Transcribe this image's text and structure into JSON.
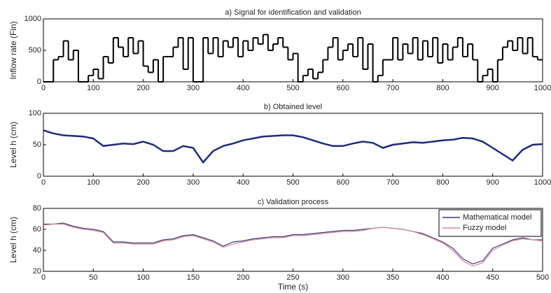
{
  "chart_data": [
    {
      "type": "step",
      "title": "a) Signal for identification and validation",
      "y_label": "Inflow rate (Fin)",
      "color": "#000000",
      "x": [
        0,
        10,
        20,
        30,
        40,
        50,
        60,
        70,
        80,
        90,
        100,
        110,
        120,
        130,
        140,
        150,
        160,
        170,
        180,
        190,
        200,
        210,
        220,
        230,
        240,
        250,
        260,
        270,
        280,
        290,
        300,
        310,
        320,
        330,
        340,
        350,
        360,
        370,
        380,
        390,
        400,
        410,
        420,
        430,
        440,
        450,
        460,
        470,
        480,
        490,
        500,
        510,
        520,
        530,
        540,
        550,
        560,
        570,
        580,
        590,
        600,
        610,
        620,
        630,
        640,
        650,
        660,
        670,
        680,
        690,
        700,
        710,
        720,
        730,
        740,
        750,
        760,
        770,
        780,
        790,
        800,
        810,
        820,
        830,
        840,
        850,
        860,
        870,
        880,
        890,
        900,
        910,
        920,
        930,
        940,
        950,
        960,
        970,
        980,
        990
      ],
      "values": [
        0,
        0,
        350,
        400,
        650,
        350,
        500,
        0,
        0,
        100,
        200,
        50,
        400,
        300,
        700,
        550,
        400,
        700,
        450,
        650,
        250,
        150,
        350,
        0,
        400,
        400,
        550,
        700,
        200,
        700,
        0,
        0,
        700,
        450,
        700,
        400,
        650,
        550,
        700,
        400,
        650,
        500,
        700,
        600,
        750,
        500,
        600,
        700,
        550,
        350,
        450,
        0,
        100,
        200,
        50,
        150,
        350,
        550,
        700,
        350,
        500,
        600,
        400,
        700,
        200,
        600,
        0,
        100,
        350,
        350,
        700,
        350,
        600,
        450,
        700,
        350,
        650,
        400,
        700,
        300,
        600,
        350,
        550,
        700,
        400,
        600,
        350,
        0,
        100,
        200,
        0,
        350,
        550,
        650,
        500,
        700,
        450,
        700,
        400,
        350
      ],
      "xlim": [
        0,
        1000
      ],
      "xticks": [
        0,
        100,
        200,
        300,
        400,
        500,
        600,
        700,
        800,
        900,
        1000
      ],
      "ylim": [
        0,
        1000
      ],
      "yticks": [
        0,
        500,
        1000
      ]
    },
    {
      "type": "line",
      "title": "b) Obtained level",
      "y_label": "Level h (cm)",
      "color": "#1f2a7a",
      "x": [
        0,
        20,
        40,
        60,
        80,
        100,
        120,
        140,
        160,
        180,
        200,
        220,
        240,
        260,
        280,
        300,
        320,
        340,
        360,
        380,
        400,
        420,
        440,
        460,
        480,
        500,
        520,
        540,
        560,
        580,
        600,
        620,
        640,
        660,
        680,
        700,
        720,
        740,
        760,
        780,
        800,
        820,
        840,
        860,
        880,
        900,
        920,
        940,
        960,
        980,
        1000
      ],
      "values": [
        73,
        68,
        65,
        64,
        63,
        60,
        48,
        50,
        52,
        51,
        55,
        50,
        40,
        40,
        48,
        45,
        22,
        40,
        48,
        52,
        57,
        60,
        63,
        64,
        65,
        65,
        62,
        57,
        52,
        48,
        48,
        52,
        55,
        53,
        45,
        50,
        52,
        54,
        53,
        55,
        57,
        58,
        61,
        60,
        55,
        45,
        35,
        25,
        42,
        50,
        51
      ],
      "xlim": [
        0,
        1000
      ],
      "xticks": [
        0,
        100,
        200,
        300,
        400,
        500,
        600,
        700,
        800,
        900,
        1000
      ],
      "ylim": [
        0,
        100
      ],
      "yticks": [
        0,
        50,
        100
      ]
    },
    {
      "type": "line",
      "title": "c) Validation process",
      "y_label": "Level h (cm)",
      "x_label": "Time (s)",
      "legend": "upper right",
      "x": [
        0,
        10,
        20,
        30,
        40,
        50,
        60,
        70,
        80,
        90,
        100,
        110,
        120,
        130,
        140,
        150,
        160,
        170,
        180,
        190,
        200,
        210,
        220,
        230,
        240,
        250,
        260,
        270,
        280,
        290,
        300,
        310,
        320,
        330,
        340,
        350,
        360,
        370,
        380,
        390,
        400,
        410,
        420,
        430,
        440,
        450,
        460,
        470,
        480,
        490,
        500
      ],
      "series": [
        {
          "name": "Mathematical model",
          "color": "#3c3c6e",
          "values": [
            65,
            65,
            66,
            63,
            61,
            60,
            58,
            48,
            48,
            47,
            47,
            47,
            50,
            51,
            54,
            55,
            52,
            49,
            44,
            48,
            49,
            51,
            52,
            53,
            53,
            55,
            55,
            56,
            57,
            58,
            59,
            59,
            60,
            61,
            62,
            61,
            60,
            58,
            56,
            52,
            48,
            42,
            32,
            27,
            30,
            42,
            46,
            50,
            52,
            50,
            50
          ]
        },
        {
          "name": "Fuzzy model",
          "color": "#d58aa3",
          "values": [
            64,
            65,
            65,
            62,
            60,
            59,
            57,
            47,
            47,
            46,
            46,
            46,
            49,
            50,
            53,
            54,
            51,
            48,
            43,
            46,
            48,
            50,
            51,
            52,
            52,
            54,
            54,
            55,
            56,
            57,
            58,
            58,
            59,
            61,
            62,
            61,
            60,
            58,
            55,
            51,
            47,
            40,
            30,
            25,
            28,
            40,
            45,
            49,
            51,
            50,
            49
          ]
        }
      ],
      "xlim": [
        0,
        500
      ],
      "xticks": [
        0,
        50,
        100,
        150,
        200,
        250,
        300,
        350,
        400,
        450,
        500
      ],
      "ylim": [
        20,
        80
      ],
      "yticks": [
        20,
        40,
        60,
        80
      ]
    }
  ]
}
